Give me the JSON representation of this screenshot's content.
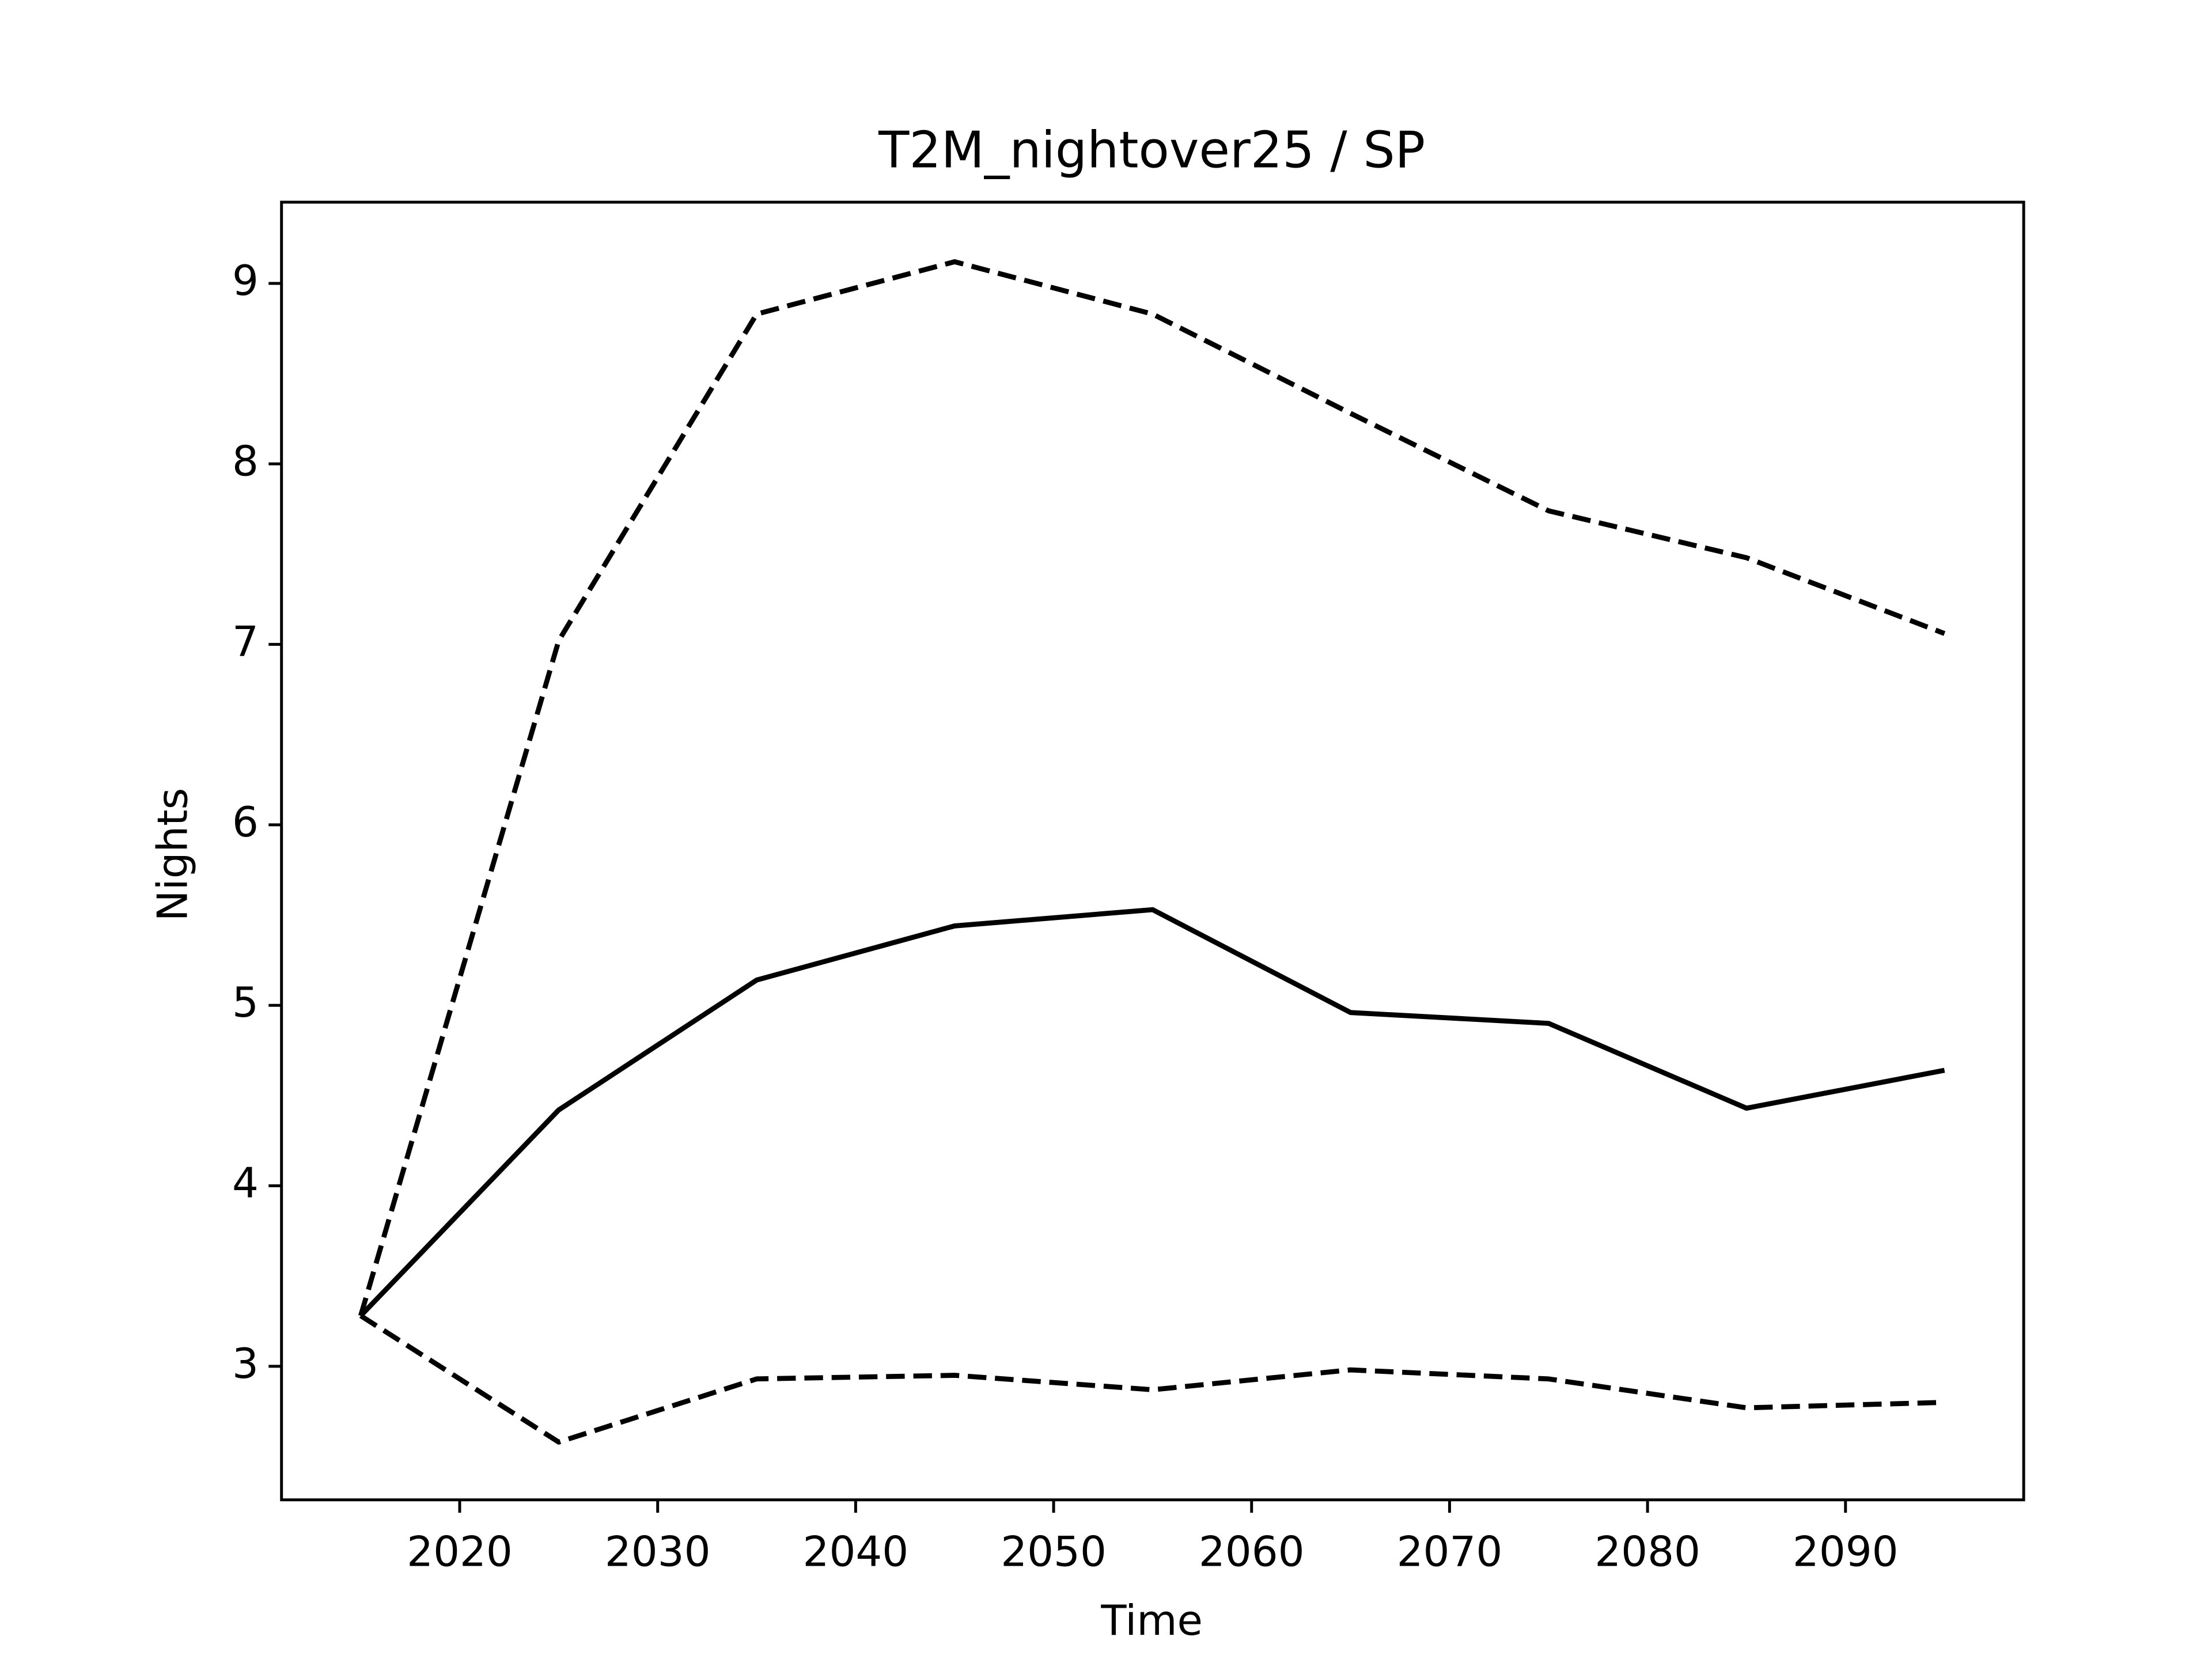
{
  "chart_data": {
    "type": "line",
    "title": "T2M_nightover25 / SP",
    "xlabel": "Time",
    "ylabel": "Nights",
    "x": [
      2015,
      2025,
      2035,
      2045,
      2055,
      2065,
      2075,
      2085,
      2095
    ],
    "series": [
      {
        "color": "#000000",
        "style": "solid",
        "values": [
          3.28,
          4.42,
          5.14,
          5.44,
          5.53,
          4.96,
          4.9,
          4.43,
          4.64
        ]
      },
      {
        "color": "#000000",
        "style": "dashed",
        "values": [
          3.28,
          7.02,
          8.83,
          9.12,
          8.83,
          8.28,
          7.74,
          7.48,
          7.06
        ]
      },
      {
        "color": "#000000",
        "style": "dashed",
        "values": [
          3.28,
          2.58,
          2.93,
          2.95,
          2.87,
          2.98,
          2.93,
          2.77,
          2.8
        ]
      }
    ],
    "xlim": [
      2011,
      2099
    ],
    "xticks": [
      2020,
      2030,
      2040,
      2050,
      2060,
      2070,
      2080,
      2090
    ],
    "ylim": [
      2.26,
      9.45
    ],
    "yticks": [
      3,
      4,
      5,
      6,
      7,
      8,
      9
    ],
    "grid": false
  }
}
